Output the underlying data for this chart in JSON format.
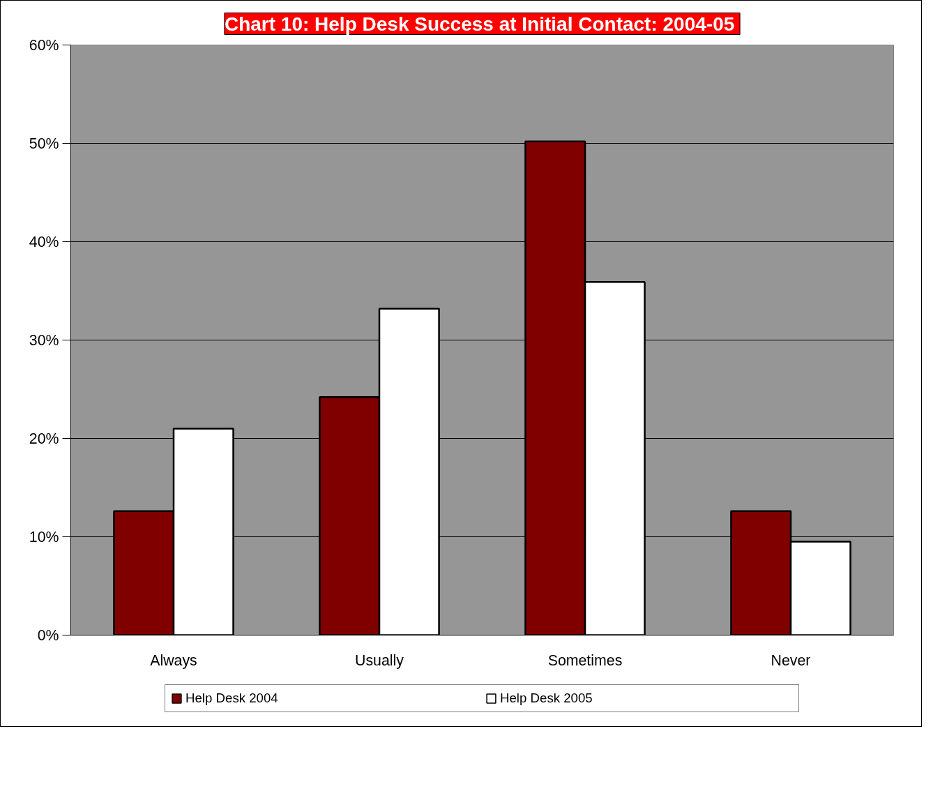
{
  "chart_data": {
    "type": "bar",
    "title": "Chart 10:  Help Desk Success at Initial Contact: 2004-05",
    "categories": [
      "Always",
      "Usually",
      "Sometimes",
      "Never"
    ],
    "series": [
      {
        "name": "Help Desk 2004",
        "color": "#800000",
        "values": [
          12.6,
          24.2,
          50.2,
          12.6
        ]
      },
      {
        "name": "Help Desk 2005",
        "color": "#ffffff",
        "values": [
          21.0,
          33.2,
          35.9,
          9.5
        ]
      }
    ],
    "ylim": [
      0,
      60
    ],
    "yticks": [
      {
        "value": 0,
        "label": "0%"
      },
      {
        "value": 10,
        "label": "10%"
      },
      {
        "value": 20,
        "label": "20%"
      },
      {
        "value": 30,
        "label": "30%"
      },
      {
        "value": 40,
        "label": "40%"
      },
      {
        "value": 50,
        "label": "50%"
      },
      {
        "value": 60,
        "label": "60%"
      }
    ],
    "grid": "y",
    "legend": "bottom"
  }
}
